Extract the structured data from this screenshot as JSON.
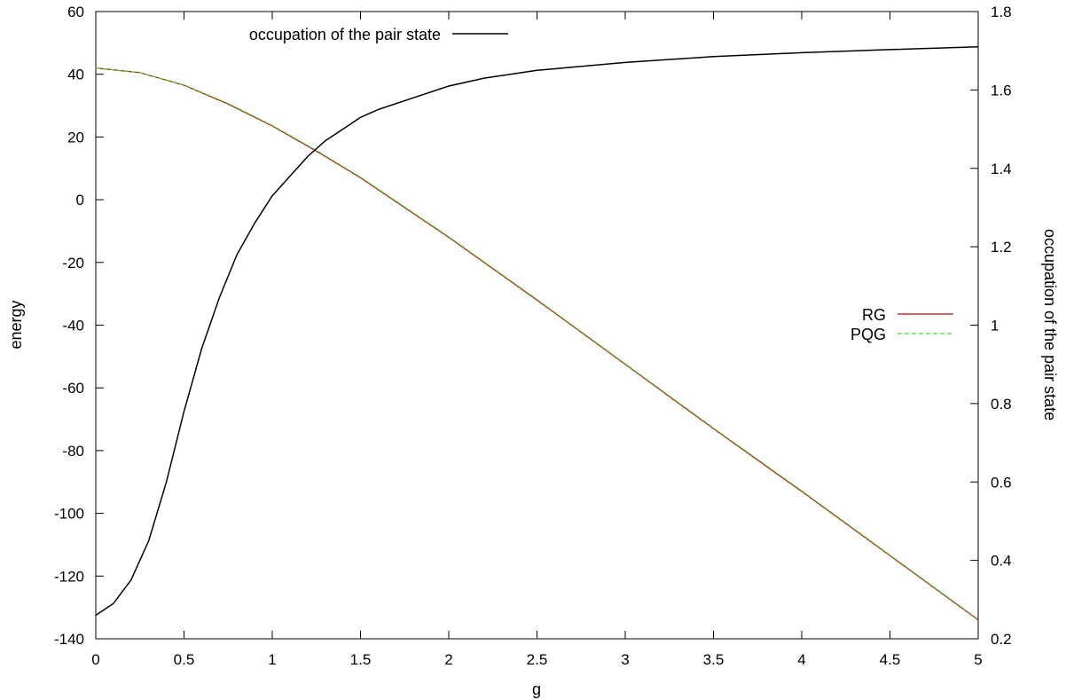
{
  "chart_data": {
    "type": "line",
    "xlabel": "g",
    "ylabel_left": "energy",
    "ylabel_right": "occupation of the pair state",
    "xlim": [
      0,
      5
    ],
    "ylim_left": [
      -140,
      60
    ],
    "ylim_right": [
      0.2,
      1.8
    ],
    "grid": false,
    "x_ticks": [
      "0",
      "0.5",
      "1",
      "1.5",
      "2",
      "2.5",
      "3",
      "3.5",
      "4",
      "4.5",
      "5"
    ],
    "y_left_ticks": [
      "60",
      "40",
      "20",
      "0",
      "-20",
      "-40",
      "-60",
      "-80",
      "-100",
      "-120",
      "-140"
    ],
    "y_right_ticks": [
      "1.8",
      "1.6",
      "1.4",
      "1.2",
      "1",
      "0.8",
      "0.6",
      "0.4",
      "0.2"
    ],
    "legend_right": {
      "placement": "top-left",
      "entries": [
        "occupation of the pair state"
      ]
    },
    "legend_left": {
      "placement": "right",
      "entries": [
        "RG",
        "PQG"
      ]
    },
    "series": [
      {
        "name": "RG",
        "axis": "left",
        "color": "#cc0000",
        "dash": "solid",
        "x": [
          0,
          0.25,
          0.5,
          0.75,
          1.0,
          1.25,
          1.5,
          2.0,
          2.5,
          3.0,
          3.5,
          4.0,
          4.5,
          5.0
        ],
        "y": [
          42,
          40.5,
          36.5,
          30.5,
          23.5,
          15.5,
          7,
          -12,
          -32,
          -52.5,
          -73,
          -93,
          -113.5,
          -134
        ]
      },
      {
        "name": "PQG",
        "axis": "left",
        "color": "#33dd33",
        "dash": "dashed",
        "x": [
          0,
          0.25,
          0.5,
          0.75,
          1.0,
          1.25,
          1.5,
          2.0,
          2.5,
          3.0,
          3.5,
          4.0,
          4.5,
          5.0
        ],
        "y": [
          42,
          40.5,
          36.6,
          30.7,
          23.7,
          15.7,
          7.2,
          -11.8,
          -31.8,
          -52.3,
          -72.8,
          -92.8,
          -113.3,
          -133.8
        ]
      },
      {
        "name": "occupation of the pair state",
        "axis": "right",
        "color": "#000000",
        "dash": "solid",
        "x": [
          0,
          0.1,
          0.2,
          0.3,
          0.4,
          0.5,
          0.6,
          0.7,
          0.8,
          0.9,
          1.0,
          1.1,
          1.2,
          1.3,
          1.4,
          1.5,
          1.6,
          1.8,
          2.0,
          2.2,
          2.5,
          3.0,
          3.5,
          4.0,
          4.5,
          5.0
        ],
        "y": [
          0.26,
          0.29,
          0.35,
          0.45,
          0.6,
          0.78,
          0.94,
          1.07,
          1.18,
          1.26,
          1.33,
          1.38,
          1.43,
          1.47,
          1.5,
          1.53,
          1.55,
          1.58,
          1.61,
          1.63,
          1.65,
          1.67,
          1.685,
          1.695,
          1.703,
          1.71
        ]
      }
    ]
  }
}
